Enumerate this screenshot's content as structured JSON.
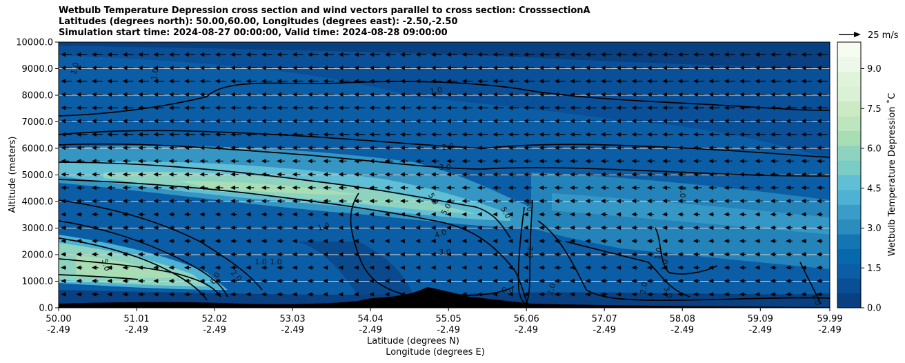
{
  "title_lines": [
    "Wetbulb Temperature Depression cross section and wind vectors parallel to cross section: CrosssectionA",
    "Latitudes (degrees north): 50.00,60.00, Longitudes (degrees east): -2.50,-2.50",
    "Simulation start time: 2024-08-27 00:00:00, Valid time: 2024-08-28 09:00:00"
  ],
  "chart_data": {
    "type": "heatmap",
    "title": "Wetbulb Temperature Depression cross section and wind vectors parallel to cross section: CrosssectionA",
    "ylabel": "Altitude (meters)",
    "xlabel_lat": "Latitude (degrees N)",
    "xlabel_lon": "Longitude (degrees E)",
    "ylim": [
      0,
      10000
    ],
    "y_ticks": [
      "0.0",
      "1000.0",
      "2000.0",
      "3000.0",
      "4000.0",
      "5000.0",
      "6000.0",
      "7000.0",
      "8000.0",
      "9000.0",
      "10000.0"
    ],
    "x_ticks": [
      {
        "lat": "50.00",
        "lon": "-2.49"
      },
      {
        "lat": "51.01",
        "lon": "-2.49"
      },
      {
        "lat": "52.02",
        "lon": "-2.49"
      },
      {
        "lat": "53.03",
        "lon": "-2.49"
      },
      {
        "lat": "54.04",
        "lon": "-2.49"
      },
      {
        "lat": "55.05",
        "lon": "-2.49"
      },
      {
        "lat": "56.06",
        "lon": "-2.49"
      },
      {
        "lat": "57.07",
        "lon": "-2.49"
      },
      {
        "lat": "58.08",
        "lon": "-2.49"
      },
      {
        "lat": "59.09",
        "lon": "-2.49"
      },
      {
        "lat": "59.99",
        "lon": "-2.49"
      }
    ],
    "grid": "horizontal",
    "colorbar": {
      "label": "Wetbulb Temperature Depression ˚C",
      "ticks": [
        "0.0",
        "1.5",
        "3.0",
        "4.5",
        "6.0",
        "7.5",
        "9.0"
      ],
      "range": [
        0,
        10
      ],
      "colors": [
        "#084081",
        "#0a4e95",
        "#0b5ea6",
        "#0868ac",
        "#1475b2",
        "#2b8cbe",
        "#3a9cc8",
        "#4eb3d3",
        "#60bed5",
        "#7bccc4",
        "#8dd3c0",
        "#a8ddb5",
        "#bde5be",
        "#ccebc5",
        "#dbf1d5",
        "#e0f3db",
        "#eef8ea",
        "#f7fcf0"
      ]
    },
    "wind_reference": {
      "label": "25 m/s",
      "value": 25
    },
    "contour_labels": [
      "1.0",
      "2.0",
      "3.0",
      "4.0",
      "5.0",
      "6.0",
      "0.0"
    ],
    "wind_direction": "southward (pointing toward lower latitude)"
  }
}
